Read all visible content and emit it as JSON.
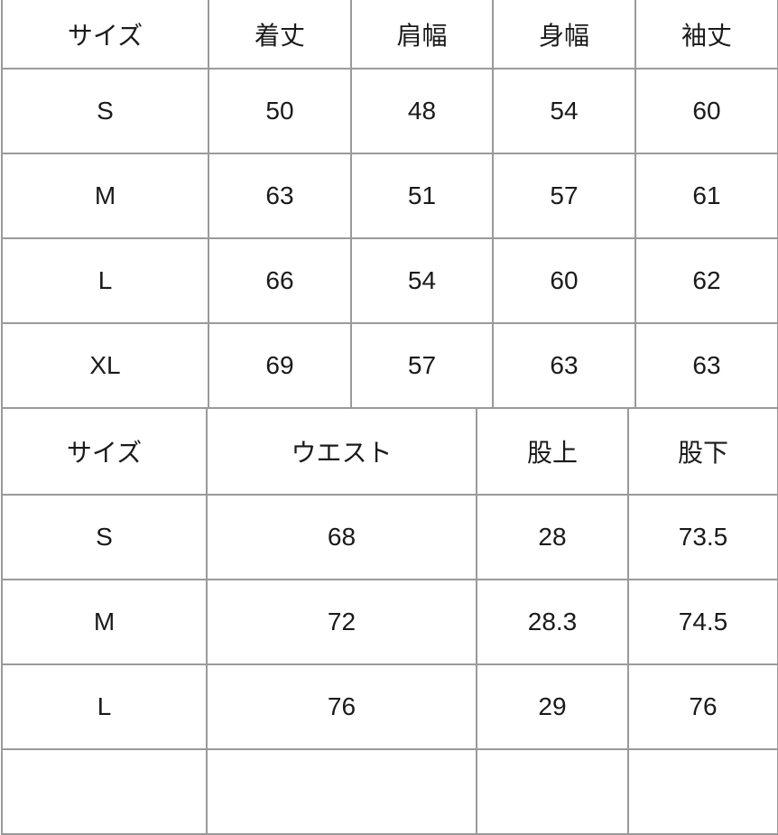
{
  "table_top": {
    "headers": [
      "サイズ",
      "着丈",
      "肩幅",
      "身幅",
      "袖丈"
    ],
    "rows": [
      [
        "S",
        "50",
        "48",
        "54",
        "60"
      ],
      [
        "M",
        "63",
        "51",
        "57",
        "61"
      ],
      [
        "L",
        "66",
        "54",
        "60",
        "62"
      ],
      [
        "XL",
        "69",
        "57",
        "63",
        "63"
      ]
    ]
  },
  "table_bottom": {
    "headers": [
      "サイズ",
      "ウエスト",
      "股上",
      "股下"
    ],
    "rows": [
      [
        "S",
        "68",
        "28",
        "73.5"
      ],
      [
        "M",
        "72",
        "28.3",
        "74.5"
      ],
      [
        "L",
        "76",
        "29",
        "76"
      ]
    ]
  }
}
